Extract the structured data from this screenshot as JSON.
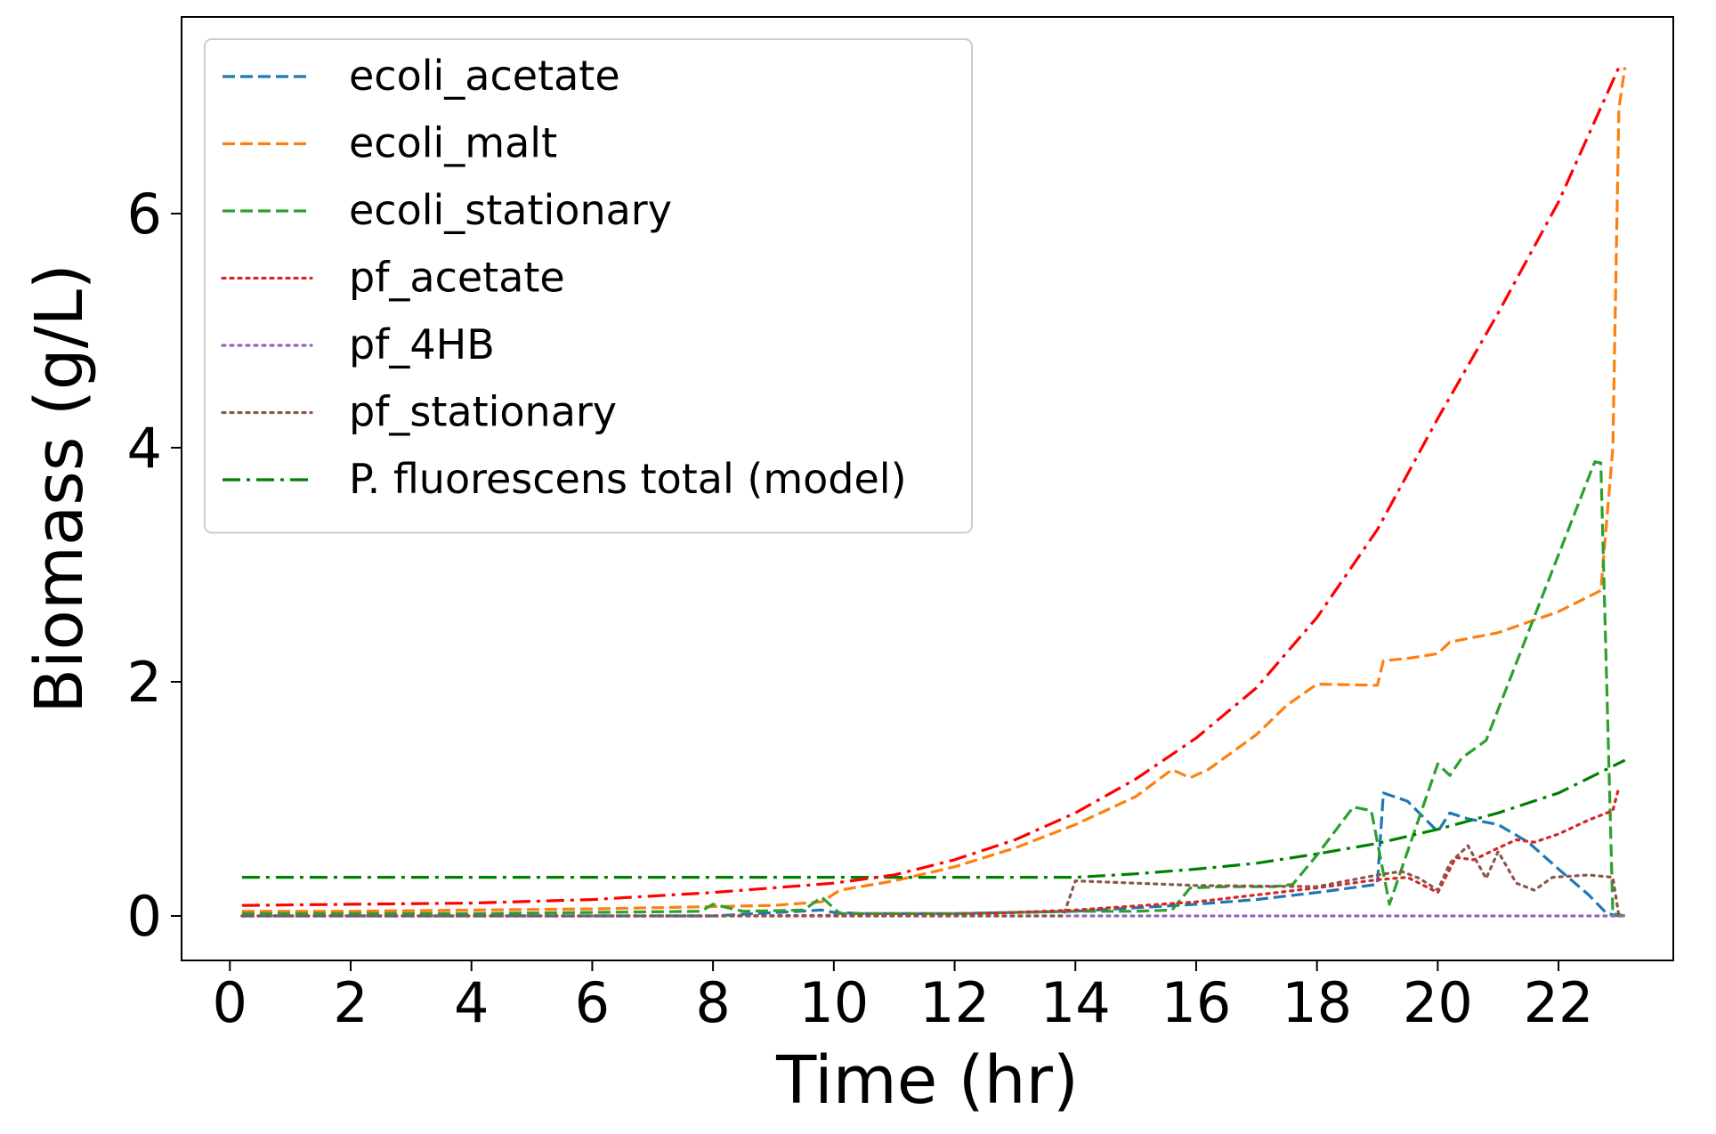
{
  "chart_data": {
    "type": "line",
    "xlabel": "Time (hr)",
    "ylabel": "Biomass (g/L)",
    "xlim": [
      -0.8,
      23.9
    ],
    "ylim": [
      -0.38,
      7.68
    ],
    "xticks": [
      0,
      2,
      4,
      6,
      8,
      10,
      12,
      14,
      16,
      18,
      20,
      22
    ],
    "yticks": [
      0,
      2,
      4,
      6
    ],
    "grid": false,
    "legend_position": "top-left",
    "series": [
      {
        "name": "ecoli_acetate",
        "color": "#1f77b4",
        "dash": "dashed",
        "x": [
          0.2,
          2,
          4,
          6,
          8,
          9.8,
          10,
          10.5,
          12,
          14,
          16,
          17,
          18,
          19,
          19.1,
          19.5,
          20,
          20.2,
          20.5,
          21,
          21.5,
          22,
          22.5,
          22.8,
          23.0,
          23.1
        ],
        "y": [
          0.0,
          0.0,
          0.0,
          0.0,
          0.0,
          0.05,
          0.03,
          0.02,
          0.02,
          0.04,
          0.1,
          0.14,
          0.2,
          0.27,
          1.05,
          0.98,
          0.72,
          0.88,
          0.83,
          0.78,
          0.63,
          0.4,
          0.18,
          0.02,
          0.0,
          0.0
        ]
      },
      {
        "name": "ecoli_malt",
        "color": "#ff7f0e",
        "dash": "dashed",
        "x": [
          0.2,
          2,
          4,
          6,
          8,
          9,
          9.8,
          10.1,
          11,
          12,
          13,
          14,
          15,
          15.6,
          15.9,
          16.2,
          17,
          17.5,
          18,
          19,
          19.1,
          19.5,
          20,
          20.2,
          21,
          22,
          22.7,
          22.9,
          23.0,
          23.1
        ],
        "y": [
          0.04,
          0.04,
          0.05,
          0.06,
          0.08,
          0.09,
          0.12,
          0.22,
          0.3,
          0.42,
          0.58,
          0.78,
          1.02,
          1.25,
          1.18,
          1.25,
          1.55,
          1.8,
          1.98,
          1.97,
          2.18,
          2.2,
          2.24,
          2.34,
          2.42,
          2.6,
          2.78,
          4.0,
          6.9,
          7.25
        ]
      },
      {
        "name": "ecoli_stationary",
        "color": "#2ca02c",
        "dash": "dashed",
        "x": [
          0.2,
          2,
          4,
          6,
          7.8,
          8,
          8.5,
          9.5,
          9.8,
          10.1,
          10.5,
          12,
          13,
          14,
          15,
          15.6,
          15.9,
          16.5,
          17.3,
          17.6,
          18,
          18.6,
          18.9,
          19.2,
          19.5,
          20,
          20.2,
          20.4,
          20.8,
          22.6,
          22.7,
          22.9,
          23.1
        ],
        "y": [
          0.02,
          0.02,
          0.02,
          0.03,
          0.04,
          0.1,
          0.04,
          0.05,
          0.16,
          0.02,
          0.02,
          0.02,
          0.03,
          0.04,
          0.04,
          0.05,
          0.24,
          0.25,
          0.25,
          0.27,
          0.52,
          0.93,
          0.9,
          0.1,
          0.55,
          1.3,
          1.2,
          1.35,
          1.5,
          3.88,
          3.87,
          0.02,
          0.0
        ]
      },
      {
        "name": "pf_acetate",
        "color": "#d62728",
        "dash": "dotted",
        "x": [
          0.2,
          4,
          8,
          12,
          14,
          16,
          17,
          18,
          19,
          19.5,
          20,
          20.3,
          20.6,
          21,
          21.3,
          21.6,
          22,
          22.5,
          22.9,
          23.0
        ],
        "y": [
          0.0,
          0.0,
          0.0,
          0.01,
          0.05,
          0.12,
          0.18,
          0.24,
          0.31,
          0.33,
          0.2,
          0.5,
          0.48,
          0.58,
          0.65,
          0.63,
          0.7,
          0.82,
          0.9,
          1.1
        ]
      },
      {
        "name": "pf_4HB",
        "color": "#9467bd",
        "dash": "dotted",
        "x": [
          0.2,
          23.1
        ],
        "y": [
          0.0,
          0.0
        ]
      },
      {
        "name": "pf_stationary",
        "color": "#8c564b",
        "dash": "dotted",
        "x": [
          0.2,
          10,
          13.8,
          14,
          16,
          18,
          19,
          19.4,
          19.7,
          20,
          20.2,
          20.5,
          20.8,
          21,
          21.3,
          21.6,
          21.9,
          22.2,
          22.5,
          22.9,
          23.0
        ],
        "y": [
          0.0,
          0.0,
          0.0,
          0.3,
          0.26,
          0.25,
          0.35,
          0.38,
          0.32,
          0.22,
          0.45,
          0.6,
          0.32,
          0.55,
          0.28,
          0.22,
          0.33,
          0.34,
          0.35,
          0.33,
          0.0
        ]
      },
      {
        "name": "P. fluorescens total (model)",
        "color": "#008000",
        "dash": "dashdot",
        "x": [
          0.2,
          4,
          8,
          12,
          14,
          15,
          16,
          17,
          18,
          19,
          20,
          21,
          22,
          23.1
        ],
        "y": [
          0.33,
          0.33,
          0.33,
          0.33,
          0.33,
          0.36,
          0.4,
          0.45,
          0.53,
          0.62,
          0.74,
          0.88,
          1.05,
          1.33
        ]
      },
      {
        "color": "#ff0000",
        "dash": "dashdot",
        "x": [
          0.2,
          2,
          4,
          6,
          8,
          10,
          11,
          12,
          13,
          14,
          15,
          16,
          17,
          18,
          19,
          20,
          21,
          22,
          23.0
        ],
        "y": [
          0.09,
          0.1,
          0.11,
          0.14,
          0.2,
          0.28,
          0.35,
          0.48,
          0.65,
          0.88,
          1.17,
          1.52,
          1.95,
          2.55,
          3.3,
          4.25,
          5.15,
          6.1,
          7.25
        ]
      }
    ]
  }
}
